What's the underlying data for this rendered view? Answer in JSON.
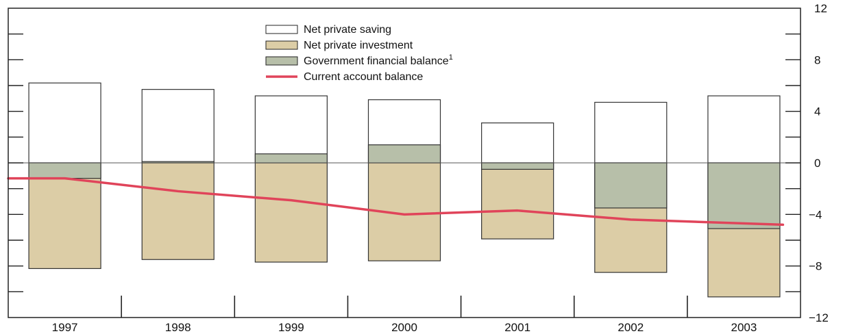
{
  "chart_data": {
    "type": "bar",
    "categories": [
      "1997",
      "1998",
      "1999",
      "2000",
      "2001",
      "2002",
      "2003"
    ],
    "series": [
      {
        "name": "Net private saving",
        "values": [
          6.2,
          5.7,
          5.2,
          4.9,
          3.1,
          4.7,
          5.2
        ]
      },
      {
        "name": "Net private investment",
        "values": [
          -8.2,
          -7.5,
          -7.7,
          -7.6,
          -5.9,
          -8.5,
          -10.4
        ]
      },
      {
        "name": "Government financial balance",
        "values": [
          -1.2,
          0.1,
          0.7,
          1.4,
          -0.5,
          -3.5,
          -5.1
        ]
      },
      {
        "name": "Current account balance",
        "values": [
          -1.2,
          -2.2,
          -2.9,
          -4.0,
          -3.7,
          -4.4,
          -4.8
        ]
      }
    ],
    "legend": [
      {
        "label": "Net private saving",
        "sup": ""
      },
      {
        "label": "Net private investment",
        "sup": ""
      },
      {
        "label": "Government financial balance",
        "sup": "1"
      },
      {
        "label": "Current account balance",
        "sup": ""
      }
    ],
    "y_ticks": [
      "12",
      "8",
      "4",
      "0",
      "−4",
      "−8",
      "−12"
    ],
    "ylim": [
      -12,
      12
    ],
    "y_axis_side": "right",
    "legend_position": "top-center",
    "colors": {
      "saving": "#ffffff",
      "investment": "#dccda6",
      "government": "#b7bfa9",
      "current_account": "#e0445a",
      "frame": "#222222",
      "zero_line": "#555555"
    }
  }
}
